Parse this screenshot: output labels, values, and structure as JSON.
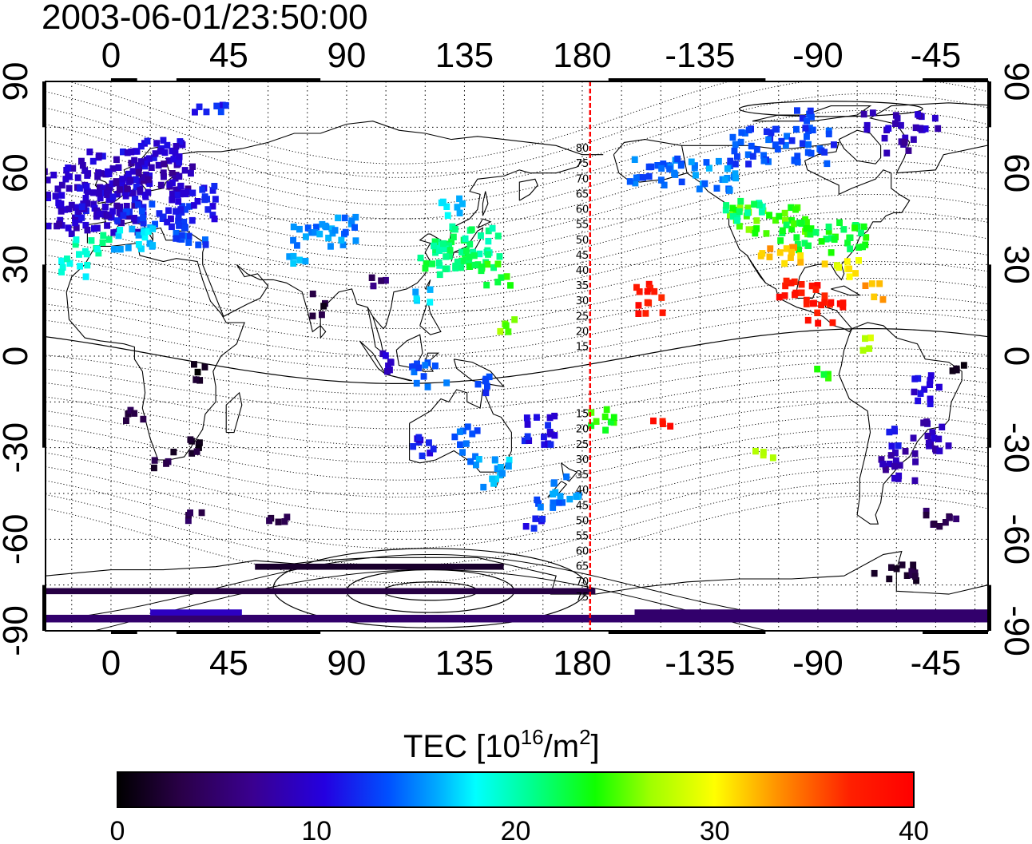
{
  "timestamp": "2003-06-01/23:50:00",
  "map": {
    "projection": "equirectangular",
    "lon_ticks": [
      "0",
      "45",
      "90",
      "135",
      "180",
      "-135",
      "-90",
      "-45"
    ],
    "lat_ticks": [
      "90",
      "60",
      "30",
      "0",
      "-30",
      "-60",
      "-90"
    ],
    "grid": "dotted",
    "midnight_meridian_lon": 183,
    "mlat_labels_north": [
      "80",
      "75",
      "70",
      "65",
      "60",
      "55",
      "50",
      "45",
      "40",
      "35",
      "30",
      "25",
      "20",
      "15"
    ],
    "mlat_labels_south": [
      "15",
      "20",
      "25",
      "30",
      "35",
      "40",
      "45",
      "50",
      "55",
      "60",
      "65",
      "70",
      "75"
    ],
    "colors": {
      "midnight_line": "#ff0000",
      "coast": "#000000",
      "contour": "#000000"
    }
  },
  "colorbar": {
    "title_main": "TEC  [10",
    "title_sup1": "16",
    "title_mid": "/m",
    "title_sup2": "2",
    "title_end": "]",
    "ticks": [
      "0",
      "10",
      "20",
      "30",
      "40"
    ],
    "range": [
      0,
      40
    ]
  },
  "tec_patches": [
    {
      "lon": -10,
      "lat": 52,
      "w": 40,
      "h": 22,
      "v": 9
    },
    {
      "lon": 0,
      "lat": 55,
      "w": 28,
      "h": 18,
      "v": 10
    },
    {
      "lon": 15,
      "lat": 60,
      "w": 30,
      "h": 12,
      "v": 8
    },
    {
      "lon": 15,
      "lat": 47,
      "w": 28,
      "h": 8,
      "v": 12
    },
    {
      "lon": 30,
      "lat": 52,
      "w": 20,
      "h": 14,
      "v": 11
    },
    {
      "lon": 10,
      "lat": 40,
      "w": 20,
      "h": 8,
      "v": 17
    },
    {
      "lon": 30,
      "lat": 40,
      "w": 14,
      "h": 8,
      "v": 13
    },
    {
      "lon": -8,
      "lat": 37,
      "w": 14,
      "h": 8,
      "v": 20
    },
    {
      "lon": -15,
      "lat": 30,
      "w": 12,
      "h": 6,
      "v": 19
    },
    {
      "lon": 80,
      "lat": 42,
      "w": 26,
      "h": 10,
      "v": 15
    },
    {
      "lon": 72,
      "lat": 32,
      "w": 12,
      "h": 4,
      "v": 16
    },
    {
      "lon": 127,
      "lat": 33,
      "w": 20,
      "h": 12,
      "v": 22
    },
    {
      "lon": 135,
      "lat": 37,
      "w": 26,
      "h": 14,
      "v": 21
    },
    {
      "lon": 128,
      "lat": 50,
      "w": 12,
      "h": 6,
      "v": 17
    },
    {
      "lon": 146,
      "lat": 28,
      "w": 12,
      "h": 8,
      "v": 24
    },
    {
      "lon": 150,
      "lat": 12,
      "w": 8,
      "h": 6,
      "v": 26
    },
    {
      "lon": 118,
      "lat": 20,
      "w": 8,
      "h": 6,
      "v": 17
    },
    {
      "lon": 78,
      "lat": 18,
      "w": 6,
      "h": 8,
      "v": 2
    },
    {
      "lon": 100,
      "lat": 25,
      "w": 8,
      "h": 4,
      "v": 5
    },
    {
      "lon": 105,
      "lat": 0,
      "w": 6,
      "h": 10,
      "v": 9
    },
    {
      "lon": 120,
      "lat": -5,
      "w": 14,
      "h": 8,
      "v": 14
    },
    {
      "lon": 140,
      "lat": -8,
      "w": 10,
      "h": 6,
      "v": 13
    },
    {
      "lon": 118,
      "lat": -30,
      "w": 8,
      "h": 10,
      "v": 11
    },
    {
      "lon": 135,
      "lat": -25,
      "w": 12,
      "h": 6,
      "v": 14
    },
    {
      "lon": 147,
      "lat": -37,
      "w": 12,
      "h": 10,
      "v": 16
    },
    {
      "lon": 137,
      "lat": -32,
      "w": 8,
      "h": 6,
      "v": 15
    },
    {
      "lon": 172,
      "lat": -43,
      "w": 12,
      "h": 10,
      "v": 15
    },
    {
      "lon": 163,
      "lat": -23,
      "w": 14,
      "h": 10,
      "v": 11
    },
    {
      "lon": 186,
      "lat": -20,
      "w": 10,
      "h": 8,
      "v": 24
    },
    {
      "lon": 158,
      "lat": -54,
      "w": 12,
      "h": 4,
      "v": 12
    },
    {
      "lon": 165,
      "lat": -47,
      "w": 8,
      "h": 4,
      "v": 14
    },
    {
      "lon": 205,
      "lat": 20,
      "w": 12,
      "h": 10,
      "v": 38
    },
    {
      "lon": 208,
      "lat": -22,
      "w": 10,
      "h": 4,
      "v": 38
    },
    {
      "lon": 248,
      "lat": -31,
      "w": 8,
      "h": 3,
      "v": 28
    },
    {
      "lon": 27,
      "lat": -28,
      "w": 12,
      "h": 6,
      "v": 2
    },
    {
      "lon": 32,
      "lat": -3,
      "w": 6,
      "h": 8,
      "v": 1
    },
    {
      "lon": 20,
      "lat": -35,
      "w": 10,
      "h": 4,
      "v": 3
    },
    {
      "lon": 8,
      "lat": -18,
      "w": 8,
      "h": 6,
      "v": 3
    },
    {
      "lon": 65,
      "lat": -52,
      "w": 12,
      "h": 4,
      "v": 4
    },
    {
      "lon": 30,
      "lat": -52,
      "w": 8,
      "h": 4,
      "v": 4
    },
    {
      "lon": 10,
      "lat": 68,
      "w": 40,
      "h": 8,
      "v": 10
    },
    {
      "lon": -15,
      "lat": 63,
      "w": 8,
      "h": 4,
      "v": 9
    },
    {
      "lon": 40,
      "lat": 82,
      "w": 20,
      "h": 3,
      "v": 12
    },
    {
      "lon": 208,
      "lat": 62,
      "w": 22,
      "h": 10,
      "v": 14
    },
    {
      "lon": 230,
      "lat": 60,
      "w": 20,
      "h": 10,
      "v": 15
    },
    {
      "lon": 255,
      "lat": 70,
      "w": 40,
      "h": 12,
      "v": 13
    },
    {
      "lon": 300,
      "lat": 78,
      "w": 30,
      "h": 6,
      "v": 9
    },
    {
      "lon": 263,
      "lat": 80,
      "w": 14,
      "h": 4,
      "v": 12
    },
    {
      "lon": 250,
      "lat": 45,
      "w": 30,
      "h": 10,
      "v": 25
    },
    {
      "lon": 270,
      "lat": 40,
      "w": 36,
      "h": 10,
      "v": 23
    },
    {
      "lon": 240,
      "lat": 48,
      "w": 16,
      "h": 8,
      "v": 21
    },
    {
      "lon": 255,
      "lat": 34,
      "w": 20,
      "h": 6,
      "v": 32
    },
    {
      "lon": 278,
      "lat": 30,
      "w": 14,
      "h": 6,
      "v": 30
    },
    {
      "lon": 263,
      "lat": 22,
      "w": 20,
      "h": 8,
      "v": 38
    },
    {
      "lon": 272,
      "lat": 15,
      "w": 14,
      "h": 8,
      "v": 38
    },
    {
      "lon": 290,
      "lat": 22,
      "w": 8,
      "h": 6,
      "v": 33
    },
    {
      "lon": 286,
      "lat": 5,
      "w": 6,
      "h": 6,
      "v": 28
    },
    {
      "lon": 270,
      "lat": -5,
      "w": 6,
      "h": 4,
      "v": 24
    },
    {
      "lon": 310,
      "lat": -10,
      "w": 12,
      "h": 10,
      "v": 10
    },
    {
      "lon": 312,
      "lat": -25,
      "w": 14,
      "h": 10,
      "v": 9
    },
    {
      "lon": 300,
      "lat": -35,
      "w": 16,
      "h": 10,
      "v": 8
    },
    {
      "lon": 298,
      "lat": -25,
      "w": 6,
      "h": 8,
      "v": 11
    },
    {
      "lon": 315,
      "lat": -52,
      "w": 14,
      "h": 6,
      "v": 4
    },
    {
      "lon": 300,
      "lat": -70,
      "w": 20,
      "h": 6,
      "v": 2
    },
    {
      "lon": 322,
      "lat": -2,
      "w": 6,
      "h": 6,
      "v": 2
    },
    {
      "lon": 300,
      "lat": 70,
      "w": 12,
      "h": 6,
      "v": 8
    }
  ],
  "tec_bands": [
    {
      "lon1": -25,
      "lon2": 335,
      "lat": -86,
      "h": 2.5,
      "v": 5
    },
    {
      "lon1": -25,
      "lon2": 185,
      "lat": -77,
      "h": 2,
      "v": 3
    },
    {
      "lon1": 200,
      "lon2": 335,
      "lat": -84,
      "h": 2,
      "v": 5
    },
    {
      "lon1": 15,
      "lon2": 50,
      "lat": -84,
      "h": 2,
      "v": 9
    },
    {
      "lon1": 55,
      "lon2": 150,
      "lat": -69,
      "h": 2,
      "v": 2
    }
  ]
}
